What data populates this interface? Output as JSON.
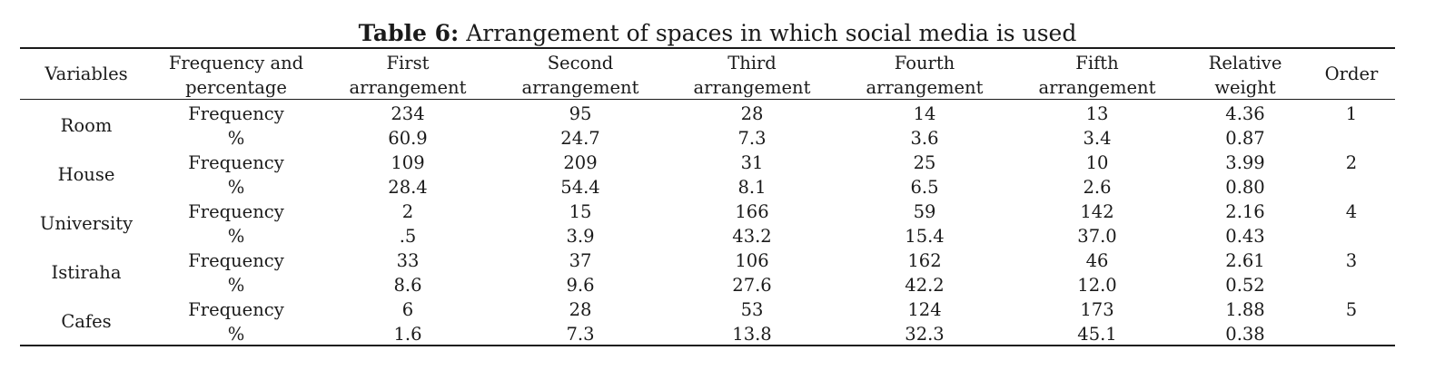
{
  "caption": {
    "label": "Table 6:",
    "text": "Arrangement of spaces in which social media is used"
  },
  "headers": {
    "variables": "Variables",
    "freq": [
      "Frequency and",
      "percentage"
    ],
    "first": [
      "First",
      "arrangement"
    ],
    "second": [
      "Second",
      "arrangement"
    ],
    "third": [
      "Third",
      "arrangement"
    ],
    "fourth": [
      "Fourth",
      "arrangement"
    ],
    "fifth": [
      "Fifth",
      "arrangement"
    ],
    "weight": [
      "Relative",
      "weight"
    ],
    "order": "Order"
  },
  "rows": [
    {
      "variable": "Room",
      "order": "1",
      "frequency": {
        "label": "Frequency",
        "values": [
          "234",
          "95",
          "28",
          "14",
          "13"
        ],
        "weight": "4.36"
      },
      "percent": {
        "label": "%",
        "values": [
          "60.9",
          "24.7",
          "7.3",
          "3.6",
          "3.4"
        ],
        "weight": "0.87"
      }
    },
    {
      "variable": "House",
      "order": "2",
      "frequency": {
        "label": "Frequency",
        "values": [
          "109",
          "209",
          "31",
          "25",
          "10"
        ],
        "weight": "3.99"
      },
      "percent": {
        "label": "%",
        "values": [
          "28.4",
          "54.4",
          "8.1",
          "6.5",
          "2.6"
        ],
        "weight": "0.80"
      }
    },
    {
      "variable": "University",
      "order": "4",
      "frequency": {
        "label": "Frequency",
        "values": [
          "2",
          "15",
          "166",
          "59",
          "142"
        ],
        "weight": "2.16"
      },
      "percent": {
        "label": "%",
        "values": [
          ".5",
          "3.9",
          "43.2",
          "15.4",
          "37.0"
        ],
        "weight": "0.43"
      }
    },
    {
      "variable": "Istiraha",
      "order": "3",
      "frequency": {
        "label": "Frequency",
        "values": [
          "33",
          "37",
          "106",
          "162",
          "46"
        ],
        "weight": "2.61"
      },
      "percent": {
        "label": "%",
        "values": [
          "8.6",
          "9.6",
          "27.6",
          "42.2",
          "12.0"
        ],
        "weight": "0.52"
      }
    },
    {
      "variable": "Cafes",
      "order": "5",
      "frequency": {
        "label": "Frequency",
        "values": [
          "6",
          "28",
          "53",
          "124",
          "173"
        ],
        "weight": "1.88"
      },
      "percent": {
        "label": "%",
        "values": [
          "1.6",
          "7.3",
          "13.8",
          "32.3",
          "45.1"
        ],
        "weight": "0.38"
      }
    }
  ]
}
